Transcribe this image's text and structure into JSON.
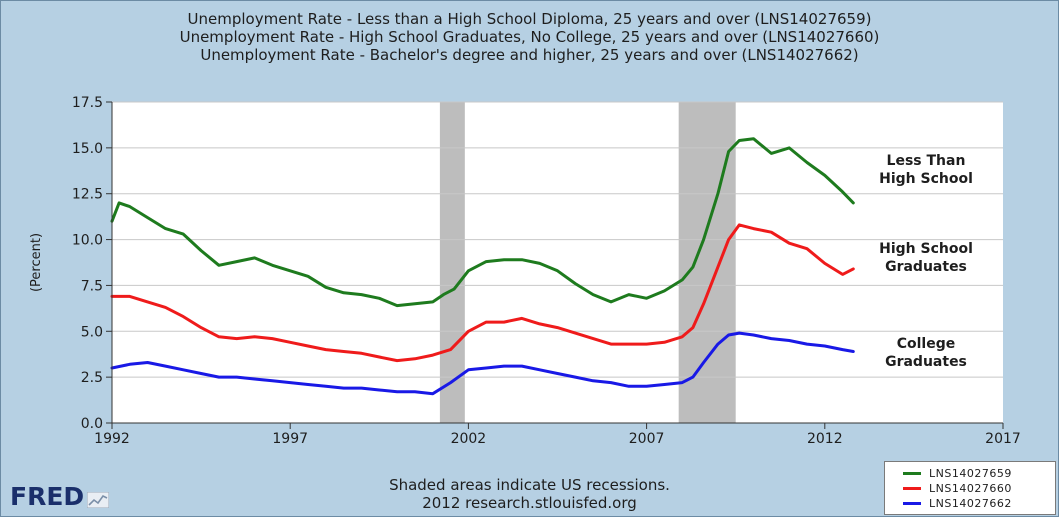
{
  "titles": [
    "Unemployment Rate - Less than a High School Diploma, 25 years and over (LNS14027659)",
    "Unemployment Rate - High School Graduates, No College, 25 years and over (LNS14027660)",
    "Unemployment Rate - Bachelor's degree and higher, 25 years and over (LNS14027662)"
  ],
  "footer": {
    "note": "Shaded areas indicate US recessions.",
    "source": "2012 research.stlouisfed.org"
  },
  "logo_text": "FRED",
  "chart_data": {
    "type": "line",
    "ylabel": "(Percent)",
    "xlim": [
      1992,
      2017
    ],
    "ylim": [
      0,
      17.5
    ],
    "x_ticks": [
      "1992",
      "1997",
      "2002",
      "2007",
      "2012",
      "2017"
    ],
    "y_ticks": [
      "0.0",
      "2.5",
      "5.0",
      "7.5",
      "10.0",
      "12.5",
      "15.0",
      "17.5"
    ],
    "grid": "horizontal",
    "legend_position": "bottom-right",
    "recessions": [
      [
        2001.2,
        2001.9
      ],
      [
        2007.9,
        2009.5
      ]
    ],
    "annotations": [
      {
        "lines": [
          "Less Than",
          "High School"
        ],
        "series": "LNS14027659"
      },
      {
        "lines": [
          "High School",
          "Graduates"
        ],
        "series": "LNS14027660"
      },
      {
        "lines": [
          "College",
          "Graduates"
        ],
        "series": "LNS14027662"
      }
    ],
    "series": [
      {
        "name": "LNS14027659",
        "color": "#1e7b1e",
        "x": [
          1992.0,
          1992.2,
          1992.5,
          1993.0,
          1993.5,
          1994.0,
          1994.5,
          1995.0,
          1995.5,
          1996.0,
          1996.5,
          1997.0,
          1997.5,
          1998.0,
          1998.5,
          1999.0,
          1999.5,
          2000.0,
          2000.5,
          2001.0,
          2001.3,
          2001.6,
          2002.0,
          2002.5,
          2003.0,
          2003.5,
          2004.0,
          2004.5,
          2005.0,
          2005.5,
          2006.0,
          2006.5,
          2007.0,
          2007.5,
          2008.0,
          2008.3,
          2008.6,
          2009.0,
          2009.3,
          2009.6,
          2010.0,
          2010.5,
          2011.0,
          2011.5,
          2012.0,
          2012.5,
          2012.8
        ],
        "values": [
          11.0,
          12.0,
          11.8,
          11.2,
          10.6,
          10.3,
          9.4,
          8.6,
          8.8,
          9.0,
          8.6,
          8.3,
          8.0,
          7.4,
          7.1,
          7.0,
          6.8,
          6.4,
          6.5,
          6.6,
          7.0,
          7.3,
          8.3,
          8.8,
          8.9,
          8.9,
          8.7,
          8.3,
          7.6,
          7.0,
          6.6,
          7.0,
          6.8,
          7.2,
          7.8,
          8.5,
          10.0,
          12.5,
          14.8,
          15.4,
          15.5,
          14.7,
          15.0,
          14.2,
          13.5,
          12.6,
          12.0
        ]
      },
      {
        "name": "LNS14027660",
        "color": "#ef1b1b",
        "x": [
          1992.0,
          1992.5,
          1993.0,
          1993.5,
          1994.0,
          1994.5,
          1995.0,
          1995.5,
          1996.0,
          1996.5,
          1997.0,
          1997.5,
          1998.0,
          1998.5,
          1999.0,
          1999.5,
          2000.0,
          2000.5,
          2001.0,
          2001.5,
          2002.0,
          2002.5,
          2003.0,
          2003.5,
          2004.0,
          2004.5,
          2005.0,
          2005.5,
          2006.0,
          2006.5,
          2007.0,
          2007.5,
          2008.0,
          2008.3,
          2008.6,
          2009.0,
          2009.3,
          2009.6,
          2010.0,
          2010.5,
          2011.0,
          2011.5,
          2012.0,
          2012.5,
          2012.8
        ],
        "values": [
          6.9,
          6.9,
          6.6,
          6.3,
          5.8,
          5.2,
          4.7,
          4.6,
          4.7,
          4.6,
          4.4,
          4.2,
          4.0,
          3.9,
          3.8,
          3.6,
          3.4,
          3.5,
          3.7,
          4.0,
          5.0,
          5.5,
          5.5,
          5.7,
          5.4,
          5.2,
          4.9,
          4.6,
          4.3,
          4.3,
          4.3,
          4.4,
          4.7,
          5.2,
          6.5,
          8.5,
          10.0,
          10.8,
          10.6,
          10.4,
          9.8,
          9.5,
          8.7,
          8.1,
          8.4
        ]
      },
      {
        "name": "LNS14027662",
        "color": "#1919e6",
        "x": [
          1992.0,
          1992.5,
          1993.0,
          1993.5,
          1994.0,
          1994.5,
          1995.0,
          1995.5,
          1996.0,
          1996.5,
          1997.0,
          1997.5,
          1998.0,
          1998.5,
          1999.0,
          1999.5,
          2000.0,
          2000.5,
          2001.0,
          2001.5,
          2002.0,
          2002.5,
          2003.0,
          2003.5,
          2004.0,
          2004.5,
          2005.0,
          2005.5,
          2006.0,
          2006.5,
          2007.0,
          2007.5,
          2008.0,
          2008.3,
          2008.6,
          2009.0,
          2009.3,
          2009.6,
          2010.0,
          2010.5,
          2011.0,
          2011.5,
          2012.0,
          2012.5,
          2012.8
        ],
        "values": [
          3.0,
          3.2,
          3.3,
          3.1,
          2.9,
          2.7,
          2.5,
          2.5,
          2.4,
          2.3,
          2.2,
          2.1,
          2.0,
          1.9,
          1.9,
          1.8,
          1.7,
          1.7,
          1.6,
          2.2,
          2.9,
          3.0,
          3.1,
          3.1,
          2.9,
          2.7,
          2.5,
          2.3,
          2.2,
          2.0,
          2.0,
          2.1,
          2.2,
          2.5,
          3.3,
          4.3,
          4.8,
          4.9,
          4.8,
          4.6,
          4.5,
          4.3,
          4.2,
          4.0,
          3.9
        ]
      }
    ]
  }
}
